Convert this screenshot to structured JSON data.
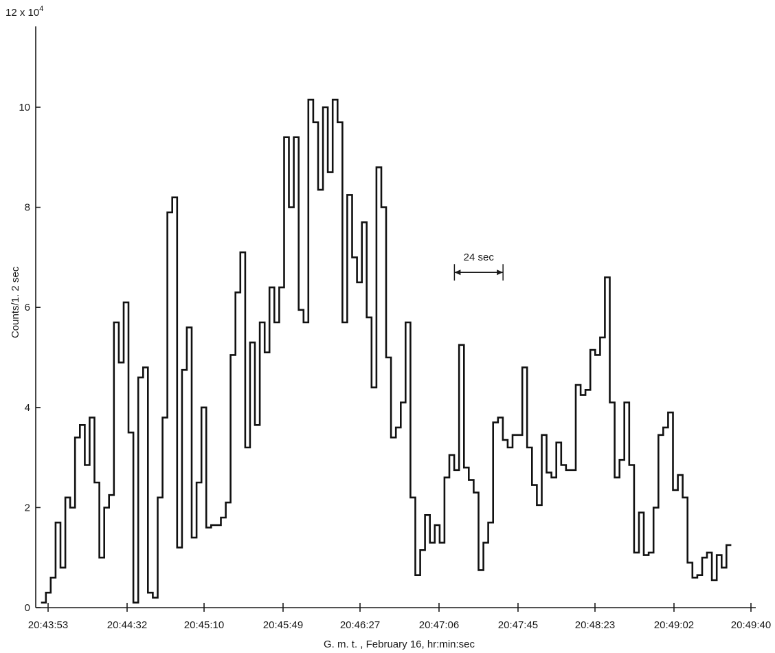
{
  "chart_data": {
    "type": "line",
    "step": true,
    "xlabel": "G. m. t. , February 16, hr:min:sec",
    "ylabel": "Counts/1. 2 sec",
    "y_scale_label": "12 x 10",
    "y_scale_exponent": "4",
    "y_ticks": [
      0,
      2,
      4,
      6,
      8,
      10
    ],
    "ylim": [
      0,
      12
    ],
    "x_ticks": [
      "20:43:53",
      "20:44:32",
      "20:45:10",
      "20:45:49",
      "20:46:27",
      "20:47:06",
      "20:47:45",
      "20:48:23",
      "20:49:02",
      "20:49:40"
    ],
    "x_tick_seconds": [
      0,
      39,
      77,
      116,
      154,
      193,
      232,
      270,
      309,
      347
    ],
    "annotation": {
      "label": "24 sec",
      "start_seconds": 200.6,
      "span_seconds": 24
    },
    "series": [
      {
        "bin_seconds": 2.4,
        "start_seconds": -3.5,
        "values": [
          0.1,
          0.3,
          0.6,
          1.7,
          0.8,
          2.2,
          2.0,
          3.4,
          3.65,
          2.85,
          3.8,
          2.5,
          1.0,
          2.0,
          2.25,
          5.7,
          4.9,
          6.1,
          3.5,
          0.1,
          4.6,
          4.8,
          0.3,
          0.2,
          2.2,
          3.8,
          7.9,
          8.2,
          1.2,
          4.75,
          5.6,
          1.4,
          2.5,
          4.0,
          1.6,
          1.65,
          1.65,
          1.8,
          2.1,
          5.05,
          6.3,
          7.1,
          3.2,
          5.3,
          3.65,
          5.7,
          5.1,
          6.4,
          5.7,
          6.4,
          9.4,
          8.0,
          9.4,
          5.95,
          5.7,
          10.15,
          9.7,
          8.35,
          10.0,
          8.7,
          10.15,
          9.7,
          5.7,
          8.25,
          7.0,
          6.5,
          7.7,
          5.8,
          4.4,
          8.8,
          8.0,
          5.0,
          3.4,
          3.6,
          4.1,
          5.7,
          2.2,
          0.65,
          1.15,
          1.85,
          1.3,
          1.65,
          1.3,
          2.6,
          3.05,
          2.75,
          5.25,
          2.8,
          2.55,
          2.3,
          0.75,
          1.3,
          1.7,
          3.7,
          3.8,
          3.35,
          3.2,
          3.45,
          3.45,
          4.8,
          3.2,
          2.45,
          2.05,
          3.45,
          2.7,
          2.6,
          3.3,
          2.85,
          2.75,
          2.75,
          4.45,
          4.25,
          4.35,
          5.15,
          5.05,
          5.4,
          6.6,
          4.1,
          2.6,
          2.95,
          4.1,
          2.85,
          1.1,
          1.9,
          1.05,
          1.1,
          2.0,
          3.45,
          3.6,
          3.9,
          2.35,
          2.65,
          2.2,
          0.9,
          0.6,
          0.65,
          1.0,
          1.1,
          0.55,
          1.05,
          0.8,
          1.25
        ]
      }
    ]
  }
}
